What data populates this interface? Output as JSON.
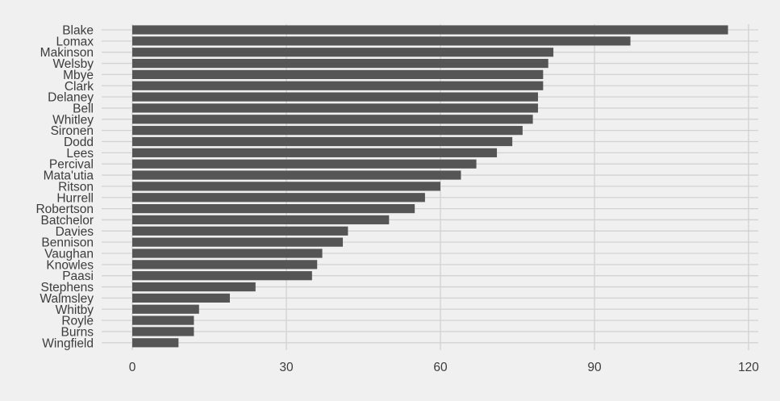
{
  "chart_data": {
    "type": "bar",
    "orientation": "horizontal",
    "title": "",
    "xlabel": "",
    "ylabel": "",
    "xlim": [
      0,
      120
    ],
    "xticks": [
      0,
      30,
      60,
      90,
      120
    ],
    "xtick_labels": [
      "0",
      "30",
      "60",
      "90",
      "120"
    ],
    "grid": true,
    "categories": [
      "Blake",
      "Lomax",
      "Makinson",
      "Welsby",
      "Mbye",
      "Clark",
      "Delaney",
      "Bell",
      "Whitley",
      "Sironen",
      "Dodd",
      "Lees",
      "Percival",
      "Mata'utia",
      "Ritson",
      "Hurrell",
      "Robertson",
      "Batchelor",
      "Davies",
      "Bennison",
      "Vaughan",
      "Knowles",
      "Paasi",
      "Stephens",
      "Walmsley",
      "Whitby",
      "Royle",
      "Burns",
      "Wingfield"
    ],
    "values": [
      116,
      97,
      82,
      81,
      80,
      80,
      79,
      79,
      78,
      76,
      74,
      71,
      67,
      64,
      60,
      57,
      55,
      50,
      42,
      41,
      37,
      36,
      35,
      24,
      19,
      13,
      12,
      12,
      9
    ]
  },
  "colors": {
    "background": "#f0f0f0",
    "bar": "#555555",
    "grid": "#d2d2d2",
    "text": "#3c3c3c"
  }
}
